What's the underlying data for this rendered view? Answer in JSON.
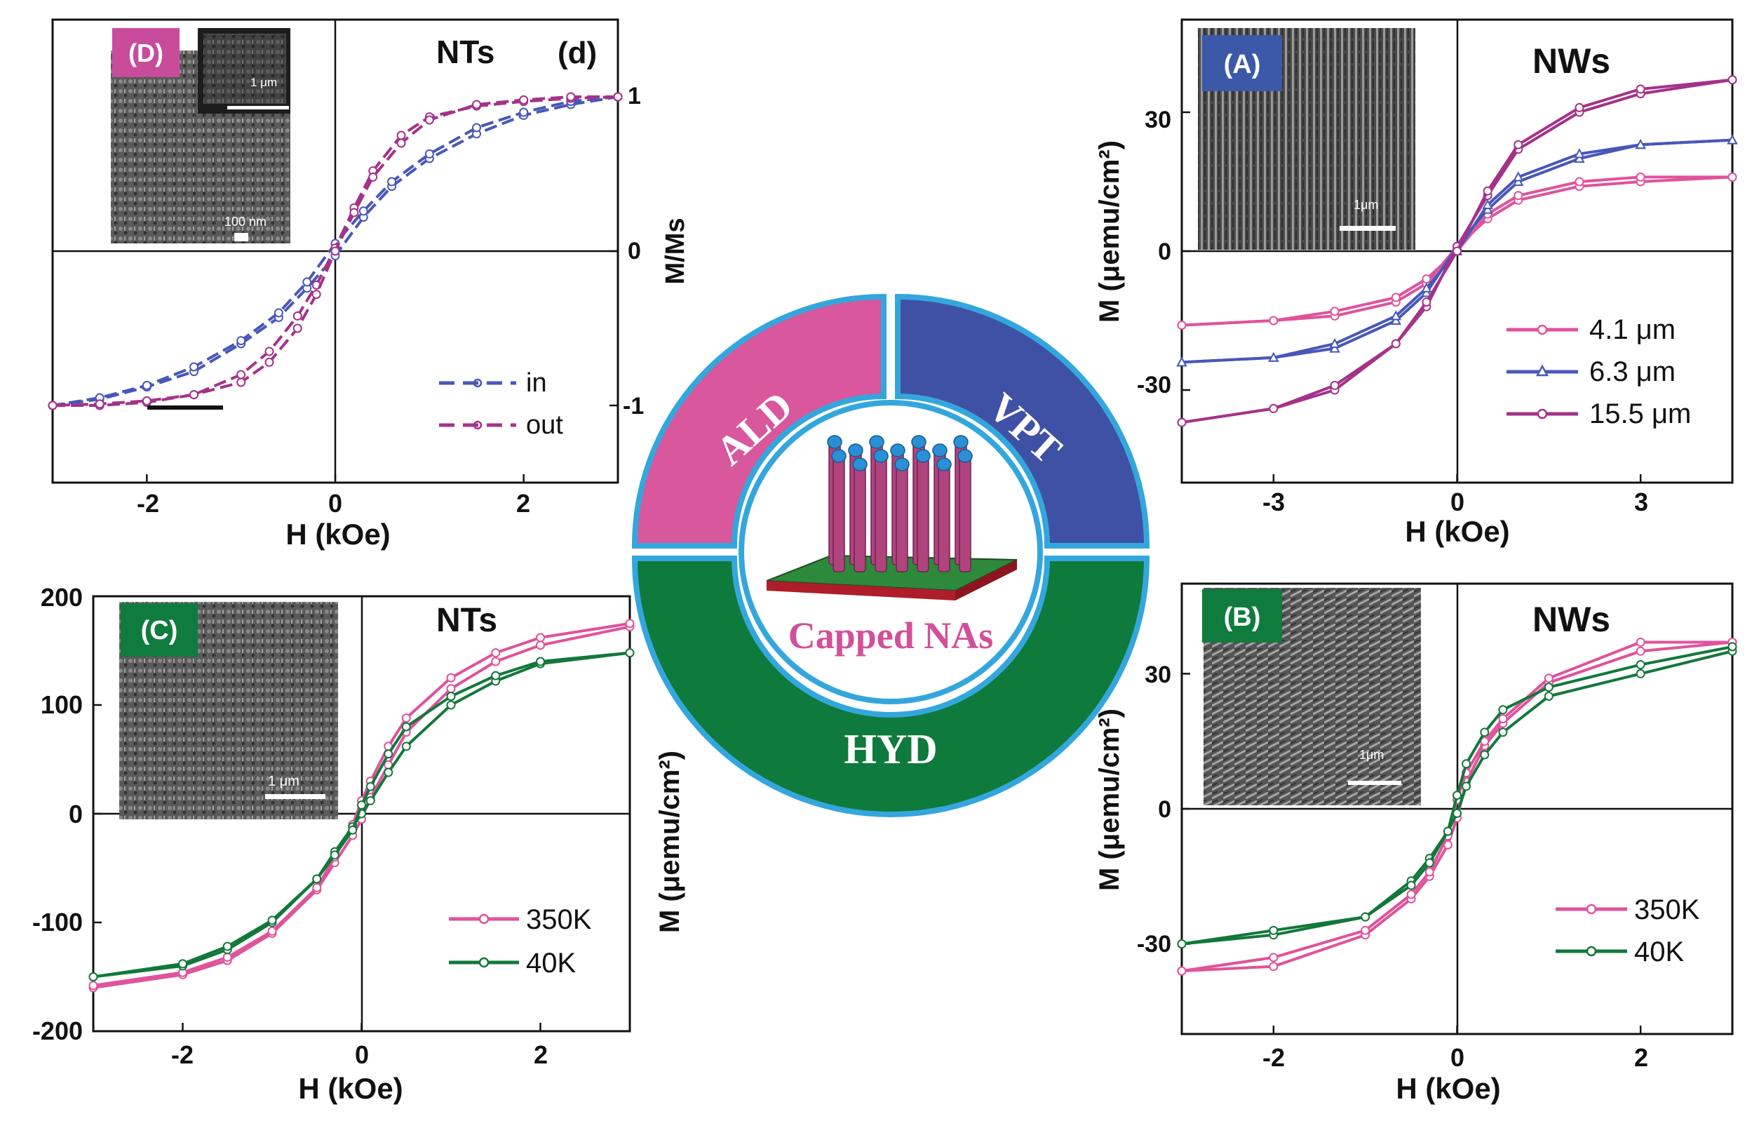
{
  "ring": {
    "segments": {
      "ald": {
        "label": "ALD",
        "color": "#d9579c"
      },
      "vpt": {
        "label": "VPT",
        "color": "#3f51a5"
      },
      "hyd": {
        "label": "HYD",
        "color": "#0e7a3c"
      }
    },
    "border_color": "#33a7dd",
    "center_label": "Capped NAs"
  },
  "colors": {
    "pink": "#e0529c",
    "blue": "#4857b8",
    "purple": "#a4328a",
    "green": "#12783a",
    "accent_magenta": "#c94c9a",
    "accent_blue": "#3c58a8",
    "accent_green": "#0f7c3e"
  },
  "chart_data": [
    {
      "id": "D",
      "type": "line",
      "panel_tag": "(D)",
      "title": "NTs",
      "sublabel": "(d)",
      "xlabel": "H (kOe)",
      "ylabel": "M/Ms",
      "xlim": [
        -3,
        3
      ],
      "ylim": [
        -1.5,
        1.5
      ],
      "x_ticks": [
        -2,
        0,
        2
      ],
      "y_ticks": [
        -1,
        0,
        1
      ],
      "x_tick_labels": [
        "-2",
        "0",
        "2"
      ],
      "y_tick_labels": [
        "-1",
        "0",
        "1"
      ],
      "inset_scale_labels": [
        "1 μm",
        "100 nm"
      ],
      "legend": [
        "in",
        "out"
      ],
      "series": [
        {
          "name": "in",
          "color": "#4857b8",
          "marker": "o",
          "dash": true,
          "branches": [
            {
              "x": [
                -3,
                -2.5,
                -2,
                -1.5,
                -1,
                -0.6,
                -0.3,
                0,
                0.3,
                0.6,
                1,
                1.5,
                2,
                2.5,
                3
              ],
              "y": [
                -1.0,
                -0.96,
                -0.88,
                -0.78,
                -0.6,
                -0.43,
                -0.24,
                -0.03,
                0.22,
                0.42,
                0.6,
                0.76,
                0.88,
                0.95,
                1.0
              ]
            },
            {
              "x": [
                3,
                2.5,
                2,
                1.5,
                1,
                0.6,
                0.3,
                0,
                -0.3,
                -0.6,
                -1,
                -1.5,
                -2,
                -2.5,
                -3
              ],
              "y": [
                1.0,
                0.97,
                0.9,
                0.8,
                0.63,
                0.45,
                0.26,
                0.05,
                -0.2,
                -0.4,
                -0.58,
                -0.75,
                -0.87,
                -0.95,
                -1.0
              ]
            }
          ]
        },
        {
          "name": "out",
          "color": "#a4328a",
          "marker": "o",
          "dash": true,
          "branches": [
            {
              "x": [
                -3,
                -2.5,
                -2,
                -1.5,
                -1,
                -0.7,
                -0.4,
                -0.2,
                0,
                0.2,
                0.4,
                0.7,
                1,
                1.5,
                2,
                2.5,
                3
              ],
              "y": [
                -1.0,
                -1.0,
                -0.98,
                -0.93,
                -0.8,
                -0.65,
                -0.42,
                -0.22,
                0.02,
                0.28,
                0.52,
                0.75,
                0.87,
                0.94,
                0.97,
                0.99,
                1.0
              ]
            },
            {
              "x": [
                3,
                2.5,
                2,
                1.5,
                1,
                0.7,
                0.4,
                0.2,
                0,
                -0.2,
                -0.4,
                -0.7,
                -1,
                -1.5,
                -2,
                -2.5,
                -3
              ],
              "y": [
                1.0,
                1.0,
                0.98,
                0.95,
                0.85,
                0.7,
                0.48,
                0.25,
                0.0,
                -0.28,
                -0.5,
                -0.72,
                -0.85,
                -0.93,
                -0.97,
                -0.99,
                -1.0
              ]
            }
          ]
        }
      ]
    },
    {
      "id": "A",
      "type": "line",
      "panel_tag": "(A)",
      "title": "NWs",
      "xlabel": "H (kOe)",
      "ylabel": "M (μemu/cm²)",
      "xlim": [
        -4.5,
        4.5
      ],
      "ylim": [
        -50,
        50
      ],
      "x_ticks": [
        -3,
        0,
        3
      ],
      "y_ticks": [
        -30,
        0,
        30
      ],
      "x_tick_labels": [
        "-3",
        "0",
        "3"
      ],
      "y_tick_labels": [
        "-30",
        "0",
        "30"
      ],
      "inset_scale_labels": [
        "1μm"
      ],
      "legend": [
        "4.1 μm",
        "6.3 μm",
        "15.5 μm"
      ],
      "series": [
        {
          "name": "4.1 μm",
          "color": "#e0529c",
          "marker": "o",
          "branches": [
            {
              "x": [
                -4.5,
                -3,
                -2,
                -1,
                -0.5,
                0,
                0.5,
                1,
                2,
                3,
                4.5
              ],
              "y": [
                -16,
                -15,
                -14,
                -11,
                -7,
                1,
                7,
                11,
                14,
                15,
                16
              ]
            },
            {
              "x": [
                4.5,
                3,
                2,
                1,
                0.5,
                0,
                -0.5,
                -1,
                -2,
                -3,
                -4.5
              ],
              "y": [
                16,
                16,
                15,
                12,
                8,
                0,
                -6,
                -10,
                -13,
                -15,
                -16
              ]
            }
          ]
        },
        {
          "name": "6.3 μm",
          "color": "#4857b8",
          "marker": "^",
          "branches": [
            {
              "x": [
                -4.5,
                -3,
                -2,
                -1,
                -0.5,
                0,
                0.5,
                1,
                2,
                3,
                4.5
              ],
              "y": [
                -24,
                -23,
                -21,
                -15,
                -9,
                1,
                9,
                15,
                20,
                23,
                24
              ]
            },
            {
              "x": [
                4.5,
                3,
                2,
                1,
                0.5,
                0,
                -0.5,
                -1,
                -2,
                -3,
                -4.5
              ],
              "y": [
                24,
                23,
                21,
                16,
                10,
                0,
                -8,
                -14,
                -20,
                -23,
                -24
              ]
            }
          ]
        },
        {
          "name": "15.5 μm",
          "color": "#a4328a",
          "marker": "o",
          "branches": [
            {
              "x": [
                -4.5,
                -3,
                -2,
                -1,
                -0.5,
                0,
                0.5,
                1,
                2,
                3,
                4.5
              ],
              "y": [
                -37,
                -34,
                -30,
                -20,
                -12,
                1,
                12,
                22,
                30,
                34,
                37
              ]
            },
            {
              "x": [
                4.5,
                3,
                2,
                1,
                0.5,
                0,
                -0.5,
                -1,
                -2,
                -3,
                -4.5
              ],
              "y": [
                37,
                35,
                31,
                23,
                13,
                0,
                -11,
                -20,
                -29,
                -34,
                -37
              ]
            }
          ]
        }
      ]
    },
    {
      "id": "C",
      "type": "line",
      "panel_tag": "(C)",
      "title": "NTs",
      "xlabel": "H (kOe)",
      "ylabel": "M (μemu/cm²)",
      "xlim": [
        -3,
        3
      ],
      "ylim": [
        -200,
        200
      ],
      "x_ticks": [
        -2,
        0,
        2
      ],
      "y_ticks": [
        -200,
        -100,
        0,
        100,
        200
      ],
      "x_tick_labels": [
        "-2",
        "0",
        "2"
      ],
      "y_tick_labels": [
        "-200",
        "-100",
        "0",
        "100",
        "200"
      ],
      "inset_scale_labels": [
        "1 μm"
      ],
      "legend": [
        "350K",
        "40K"
      ],
      "series": [
        {
          "name": "350K",
          "color": "#e0529c",
          "marker": "o",
          "branches": [
            {
              "x": [
                -3,
                -2,
                -1.5,
                -1,
                -0.5,
                -0.3,
                -0.1,
                0,
                0.1,
                0.3,
                0.5,
                1,
                1.5,
                2,
                3
              ],
              "y": [
                -160,
                -148,
                -135,
                -110,
                -70,
                -45,
                -20,
                -5,
                15,
                45,
                75,
                115,
                140,
                155,
                172
              ]
            },
            {
              "x": [
                3,
                2,
                1.5,
                1,
                0.5,
                0.3,
                0.1,
                0,
                -0.1,
                -0.3,
                -0.5,
                -1,
                -1.5,
                -2,
                -3
              ],
              "y": [
                175,
                162,
                148,
                125,
                88,
                62,
                30,
                12,
                -10,
                -40,
                -68,
                -108,
                -132,
                -146,
                -158
              ]
            }
          ]
        },
        {
          "name": "40K",
          "color": "#12783a",
          "marker": "o",
          "branches": [
            {
              "x": [
                -3,
                -2,
                -1.5,
                -1,
                -0.5,
                -0.3,
                -0.1,
                0,
                0.1,
                0.3,
                0.5,
                1,
                1.5,
                2,
                3
              ],
              "y": [
                -150,
                -140,
                -125,
                -100,
                -60,
                -35,
                -12,
                0,
                12,
                38,
                62,
                100,
                122,
                138,
                148
              ]
            },
            {
              "x": [
                3,
                2,
                1.5,
                1,
                0.5,
                0.3,
                0.1,
                0,
                -0.1,
                -0.3,
                -0.5,
                -1,
                -1.5,
                -2,
                -3
              ],
              "y": [
                148,
                140,
                127,
                108,
                80,
                55,
                25,
                8,
                -15,
                -38,
                -60,
                -98,
                -122,
                -138,
                -150
              ]
            }
          ]
        }
      ]
    },
    {
      "id": "B",
      "type": "line",
      "panel_tag": "(B)",
      "title": "NWs",
      "xlabel": "H (kOe)",
      "ylabel": "M (μemu/cm²)",
      "xlim": [
        -3,
        3
      ],
      "ylim": [
        -50,
        50
      ],
      "x_ticks": [
        -2,
        0,
        2
      ],
      "y_ticks": [
        -30,
        0,
        30
      ],
      "x_tick_labels": [
        "-2",
        "0",
        "2"
      ],
      "y_tick_labels": [
        "-30",
        "0",
        "30"
      ],
      "inset_scale_labels": [
        "1μm"
      ],
      "legend": [
        "350K",
        "40K"
      ],
      "series": [
        {
          "name": "350K",
          "color": "#e0529c",
          "marker": "o",
          "branches": [
            {
              "x": [
                -3,
                -2,
                -1,
                -0.5,
                -0.3,
                -0.1,
                0,
                0.1,
                0.3,
                0.5,
                1,
                2,
                3
              ],
              "y": [
                -36,
                -35,
                -28,
                -20,
                -15,
                -8,
                -2,
                6,
                14,
                19,
                28,
                35,
                37
              ]
            },
            {
              "x": [
                3,
                2,
                1,
                0.5,
                0.3,
                0.1,
                0,
                -0.1,
                -0.3,
                -0.5,
                -1,
                -2,
                -3
              ],
              "y": [
                37,
                37,
                29,
                20,
                15,
                8,
                2,
                -6,
                -14,
                -19,
                -27,
                -33,
                -36
              ]
            }
          ]
        },
        {
          "name": "40K",
          "color": "#12783a",
          "marker": "o",
          "branches": [
            {
              "x": [
                -3,
                -2,
                -1,
                -0.5,
                -0.3,
                -0.1,
                0,
                0.1,
                0.3,
                0.5,
                1,
                2,
                3
              ],
              "y": [
                -30,
                -28,
                -24,
                -16,
                -11,
                -5,
                -1,
                5,
                12,
                17,
                25,
                30,
                35
              ]
            },
            {
              "x": [
                3,
                2,
                1,
                0.5,
                0.3,
                0.1,
                0,
                -0.1,
                -0.3,
                -0.5,
                -1,
                -2,
                -3
              ],
              "y": [
                36,
                32,
                27,
                22,
                17,
                10,
                3,
                -5,
                -12,
                -17,
                -24,
                -27,
                -30
              ]
            }
          ]
        }
      ]
    }
  ]
}
